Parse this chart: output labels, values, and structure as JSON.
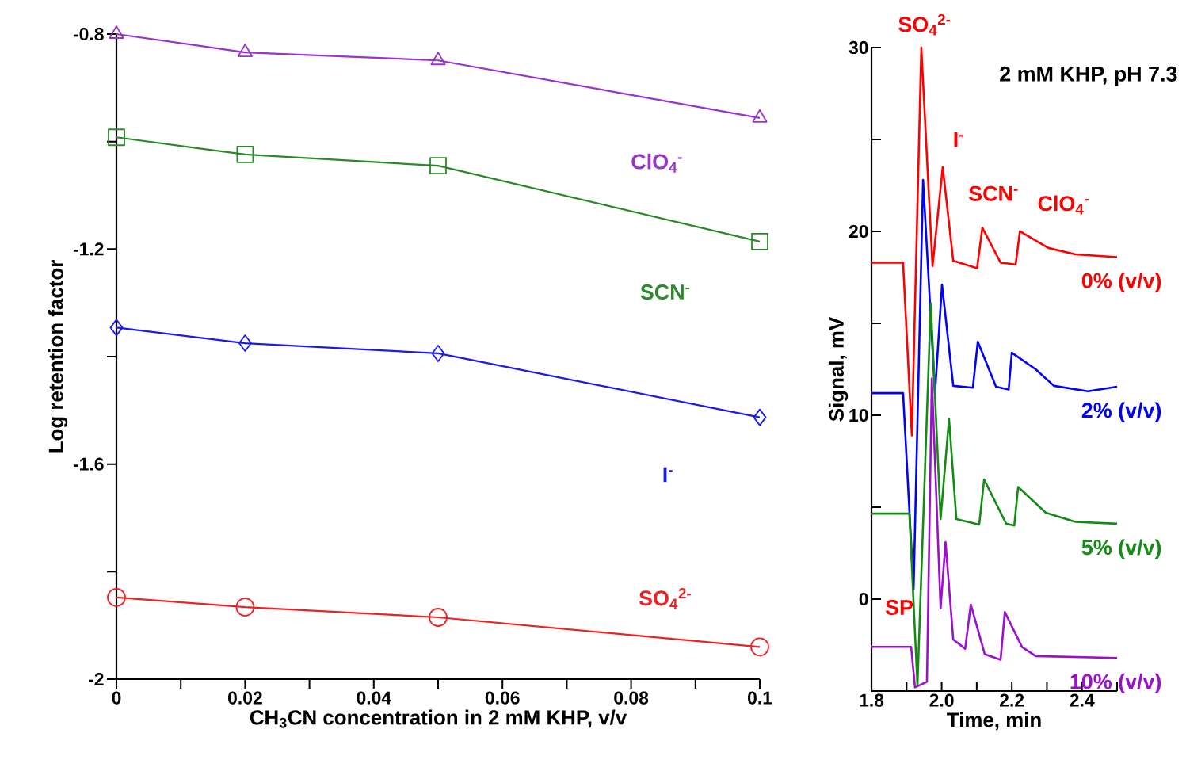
{
  "chart_data": [
    {
      "type": "line",
      "xlabel": "CH$_{3}$CN concentration in 2 mM KHP, v/v",
      "ylabel": "Log retention factor",
      "xlim": [
        0,
        0.1
      ],
      "ylim": [
        -2,
        -0.8
      ],
      "xticks": [
        0,
        {
          "value": 0.01,
          "label": null
        },
        0.02,
        {
          "value": 0.03,
          "label": null
        },
        0.04,
        {
          "value": 0.05,
          "label": null
        },
        0.06,
        {
          "value": 0.07,
          "label": null
        },
        0.08,
        {
          "value": 0.09,
          "label": null
        },
        0.1
      ],
      "yticks": [
        -2,
        {
          "value": -1.8,
          "label": null
        },
        -1.6,
        {
          "value": -1.4,
          "label": null
        },
        -1.2,
        {
          "value": -1.0,
          "label": null
        },
        -0.8
      ],
      "x": [
        0,
        0.02,
        0.05,
        0.1
      ],
      "series": [
        {
          "name": "ClO$_{4}$$^{-}$",
          "color": "#9933cc",
          "marker": "triangle",
          "values": [
            -0.8,
            -0.834,
            -0.849,
            -0.956
          ]
        },
        {
          "name": "SCN$^{-}$",
          "color": "#2a8a2a",
          "marker": "square",
          "values": [
            -0.992,
            -1.024,
            -1.045,
            -1.186
          ]
        },
        {
          "name": "I$^{-}$",
          "color": "#1a1aee",
          "marker": "diamond",
          "values": [
            -1.346,
            -1.375,
            -1.394,
            -1.513
          ]
        },
        {
          "name": "SO$_{4}$$^{2-}$",
          "color": "#ee2222",
          "marker": "circle",
          "values": [
            -1.848,
            -1.866,
            -1.885,
            -1.94
          ]
        }
      ]
    },
    {
      "type": "line",
      "xlabel": "Time, min",
      "ylabel": "Signal, mV",
      "marker": "none",
      "xlim": [
        1.8,
        2.5
      ],
      "ylim": [
        -5,
        30
      ],
      "xticks": [
        1.8,
        {
          "value": 1.9,
          "label": null
        },
        {
          "value": 2.0,
          "label": "2.0"
        },
        {
          "value": 2.1,
          "label": null
        },
        2.2,
        {
          "value": 2.3,
          "label": null
        },
        2.4,
        {
          "value": 2.5,
          "label": null
        }
      ],
      "yticks": [
        {
          "value": -5,
          "label": null
        },
        0,
        {
          "value": 5,
          "label": null
        },
        10,
        {
          "value": 15,
          "label": null
        },
        20,
        {
          "value": 25,
          "label": null
        },
        30
      ],
      "annotations": [
        {
          "text": "SO$_{4}$$^{2-}$",
          "x": 1.942,
          "y": 30.0
        },
        {
          "text": "I$^{-}$",
          "x": 2.003,
          "y": 23.5
        },
        {
          "text": "SCN$^{-}$",
          "x": 2.116,
          "y": 20.2
        },
        {
          "text": "ClO$_{4}$$^{-}$",
          "x": 2.223,
          "y": 20.0
        },
        "2 mM KHP, pH 7.3",
        "SP"
      ],
      "series": [
        {
          "name": "0% (v/v)",
          "color": "#ff0000",
          "x": [
            1.8,
            1.89,
            1.915,
            1.942,
            1.974,
            2.003,
            2.033,
            2.101,
            2.116,
            2.168,
            2.211,
            2.223,
            2.304,
            2.381,
            2.5
          ],
          "values": [
            18.3,
            18.3,
            8.9,
            30.0,
            18.1,
            23.5,
            18.4,
            18.0,
            20.2,
            18.3,
            18.2,
            20.0,
            19.1,
            18.75,
            18.6
          ]
        },
        {
          "name": "2% (v/v)",
          "color": "#0000ff",
          "x": [
            1.8,
            1.89,
            1.92,
            1.947,
            1.981,
            2.001,
            2.033,
            2.089,
            2.103,
            2.155,
            2.191,
            2.2,
            2.268,
            2.32,
            2.417,
            2.5
          ],
          "values": [
            11.2,
            11.2,
            0.56,
            22.8,
            11.2,
            17.1,
            11.6,
            11.5,
            14.0,
            11.55,
            11.4,
            13.4,
            12.5,
            11.6,
            11.3,
            11.55
          ]
        },
        {
          "name": "5% (v/v)",
          "color": "#148c14",
          "x": [
            1.8,
            1.908,
            1.931,
            1.969,
            1.997,
            2.021,
            2.042,
            2.107,
            2.121,
            2.184,
            2.207,
            2.218,
            2.297,
            2.381,
            2.5
          ],
          "values": [
            4.65,
            4.65,
            -4.7,
            16.1,
            4.35,
            9.8,
            4.35,
            4.05,
            6.5,
            4.1,
            4.0,
            6.1,
            4.7,
            4.2,
            4.1
          ]
        },
        {
          "name": "10% (v/v)",
          "color": "#9a10cc",
          "x": [
            1.8,
            1.913,
            1.924,
            1.958,
            1.972,
            1.997,
            2.011,
            2.033,
            2.067,
            2.083,
            2.123,
            2.168,
            2.18,
            2.229,
            2.268,
            2.5
          ],
          "values": [
            -2.6,
            -2.6,
            -4.8,
            -4.5,
            12.0,
            -0.5,
            3.1,
            -2.2,
            -2.7,
            -0.3,
            -3.0,
            -3.3,
            -0.7,
            -2.6,
            -3.1,
            -3.2
          ]
        }
      ]
    }
  ]
}
